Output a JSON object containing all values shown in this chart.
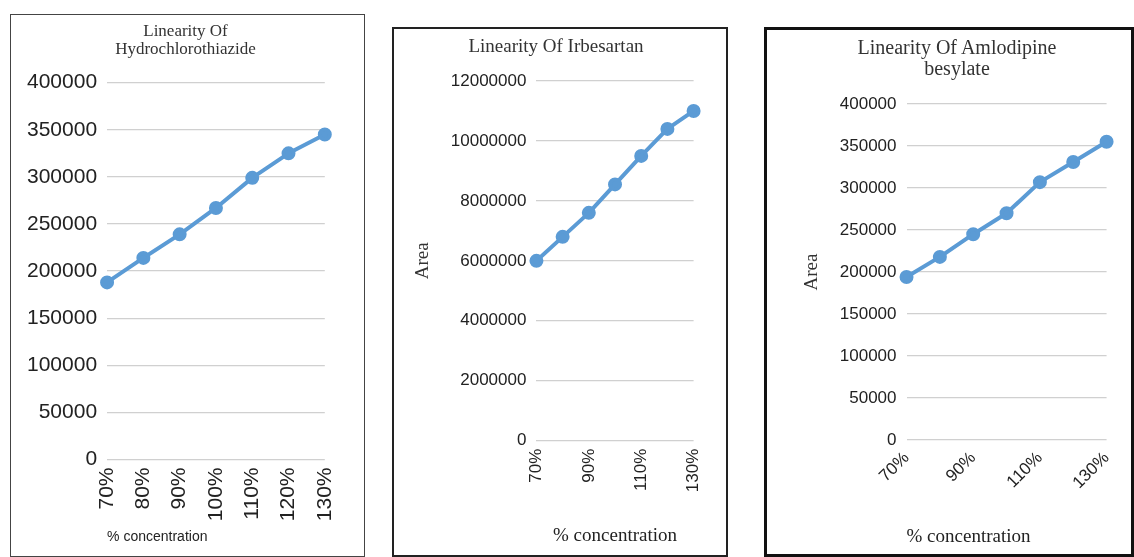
{
  "chart_data": [
    {
      "type": "line",
      "title": "Linearity Of Hydrochlorothiazide",
      "xlabel": "% concentration",
      "categories": [
        "70%",
        "80%",
        "90%",
        "100%",
        "110%",
        "120%",
        "130%"
      ],
      "series": [
        {
          "color": "#5b9bd5",
          "values": [
            188000,
            214000,
            239000,
            267000,
            299000,
            325000,
            345000
          ]
        }
      ],
      "ylim": [
        0,
        400000
      ],
      "yticks": [
        0,
        50000,
        100000,
        150000,
        200000,
        250000,
        300000,
        350000,
        400000
      ],
      "grid": "y",
      "legend": false,
      "marker": "circle",
      "line_style": "solid"
    },
    {
      "type": "line",
      "title": "Linearity Of Irbesartan",
      "xlabel": "% concentration",
      "ylabel": "Area",
      "categories": [
        "70%",
        null,
        "90%",
        null,
        "110%",
        null,
        "130%"
      ],
      "series": [
        {
          "color": "#5b9bd5",
          "values": [
            6000000,
            6800000,
            7600000,
            8550000,
            9500000,
            10400000,
            11000000
          ]
        }
      ],
      "ylim": [
        0,
        12000000
      ],
      "yticks": [
        0,
        2000000,
        4000000,
        6000000,
        8000000,
        10000000,
        12000000
      ],
      "grid": "y",
      "legend": false,
      "marker": "circle",
      "line_style": "solid"
    },
    {
      "type": "line",
      "title": "Linearity Of Amlodipine besylate",
      "xlabel": "% concentration",
      "ylabel": "Area",
      "categories": [
        "70%",
        null,
        "90%",
        null,
        "110%",
        null,
        "130%"
      ],
      "series": [
        {
          "color": "#5b9bd5",
          "values": [
            194000,
            218000,
            245000,
            270000,
            307000,
            331000,
            355000
          ]
        }
      ],
      "ylim": [
        0,
        400000
      ],
      "yticks": [
        0,
        50000,
        100000,
        150000,
        200000,
        250000,
        300000,
        350000,
        400000
      ],
      "grid": "y",
      "legend": false,
      "marker": "circle",
      "line_style": "solid"
    }
  ]
}
